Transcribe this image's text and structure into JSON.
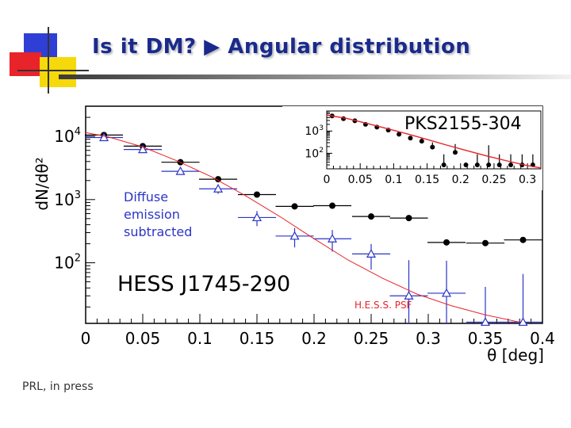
{
  "slide": {
    "title": "Is it DM? ▶ Angular distribution",
    "footer": "PRL, in press",
    "colors": {
      "title": "#1a2a8c",
      "deco_blue": "#2f3fd6",
      "deco_red": "#e8232a",
      "deco_yellow": "#f5d90a"
    }
  },
  "chart_data": [
    {
      "type": "scatter",
      "title": "HESS J1745-290",
      "xlabel": "θ [deg]",
      "ylabel": "dN/dθ²",
      "yscale": "log",
      "xlim": [
        0,
        0.4
      ],
      "ylim": [
        11,
        30000
      ],
      "xticks": [
        0,
        0.05,
        0.1,
        0.15,
        0.2,
        0.25,
        0.3,
        0.35,
        0.4
      ],
      "xtick_labels": [
        "0",
        "0.05",
        "0.1",
        "0.15",
        "0.2",
        "0.25",
        "0.3",
        "0.35",
        "0.4"
      ],
      "ytick_labels": [
        {
          "base": "10",
          "exp": "2",
          "value": 100
        },
        {
          "base": "10",
          "exp": "3",
          "value": 1000
        },
        {
          "base": "10",
          "exp": "4",
          "value": 10000
        }
      ],
      "annotations": {
        "diffuse": [
          "Diffuse",
          "emission",
          "subtracted"
        ],
        "psf": "H.E.S.S. PSF"
      },
      "series": [
        {
          "name": "",
          "marker": "filled-circle",
          "color": "#000000",
          "x": [
            0.016,
            0.05,
            0.083,
            0.116,
            0.15,
            0.183,
            0.216,
            0.25,
            0.283,
            0.316,
            0.35,
            0.383
          ],
          "y": [
            10500,
            7000,
            3900,
            2100,
            1200,
            780,
            800,
            540,
            510,
            210,
            205,
            230
          ],
          "xerr": [
            0.0167,
            0.0167,
            0.0167,
            0.0167,
            0.0167,
            0.0167,
            0.0167,
            0.0167,
            0.0167,
            0.0167,
            0.0167,
            0.0167
          ]
        },
        {
          "name": "",
          "marker": "open-triangle",
          "color": "#2b35c8",
          "x": [
            0.016,
            0.05,
            0.083,
            0.116,
            0.15,
            0.183,
            0.216,
            0.25,
            0.283,
            0.316,
            0.35,
            0.383
          ],
          "y": [
            9600,
            6200,
            2800,
            1480,
            520,
            265,
            240,
            138,
            30,
            33,
            11.5,
            11.5
          ],
          "xerr": [
            0.0167,
            0.0167,
            0.0167,
            0.0167,
            0.0167,
            0.0167,
            0.0167,
            0.0167,
            0.0167,
            0.0167,
            0.0167,
            0.0167
          ],
          "yerr_lo": [
            500,
            400,
            300,
            250,
            140,
            90,
            90,
            60,
            20,
            22,
            0,
            0
          ],
          "yerr_hi": [
            500,
            400,
            300,
            250,
            140,
            90,
            90,
            60,
            80,
            75,
            30,
            55
          ]
        },
        {
          "name": "H.E.S.S. PSF",
          "marker": "none",
          "color": "#e8232a",
          "x": [
            0.0,
            0.02,
            0.05,
            0.08,
            0.11,
            0.14,
            0.17,
            0.2,
            0.23,
            0.26,
            0.29,
            0.32,
            0.35,
            0.38
          ],
          "y": [
            11500,
            9800,
            6800,
            4100,
            2300,
            1150,
            540,
            240,
            110,
            57,
            32,
            21,
            15,
            11.5
          ]
        }
      ]
    },
    {
      "type": "scatter",
      "title": "PKS2155-304",
      "xlabel": "",
      "ylabel": "",
      "yscale": "log",
      "xlim": [
        0,
        0.32
      ],
      "ylim": [
        20,
        8000
      ],
      "xticks": [
        0,
        0.05,
        0.1,
        0.15,
        0.2,
        0.25,
        0.3
      ],
      "xtick_labels": [
        "0",
        "0.05",
        "0.1",
        "0.15",
        "0.2",
        "0.25",
        "0.3"
      ],
      "ytick_labels": [
        {
          "base": "10",
          "exp": "2",
          "value": 100
        },
        {
          "base": "10",
          "exp": "3",
          "value": 1000
        }
      ],
      "series": [
        {
          "name": "",
          "marker": "filled-circle",
          "color": "#000000",
          "x": [
            0.008,
            0.025,
            0.042,
            0.058,
            0.075,
            0.092,
            0.108,
            0.125,
            0.142,
            0.158,
            0.175,
            0.192,
            0.208,
            0.225,
            0.242,
            0.258,
            0.275,
            0.292,
            0.308
          ],
          "y": [
            4800,
            3600,
            2900,
            2000,
            1500,
            1100,
            720,
            480,
            350,
            190,
            30,
            110,
            30,
            30,
            30,
            30,
            30,
            30,
            30
          ],
          "yerr_hi": [
            0,
            0,
            0,
            0,
            0,
            0,
            0,
            0,
            150,
            120,
            60,
            150,
            0,
            60,
            200,
            60,
            60,
            60,
            60
          ]
        },
        {
          "name": "",
          "marker": "none",
          "color": "#e8232a",
          "x": [
            0.0,
            0.03,
            0.06,
            0.09,
            0.12,
            0.15,
            0.18,
            0.21,
            0.24,
            0.27,
            0.3,
            0.32
          ],
          "y": [
            5200,
            3700,
            2200,
            1300,
            750,
            420,
            230,
            130,
            75,
            45,
            28,
            22
          ]
        }
      ]
    }
  ]
}
